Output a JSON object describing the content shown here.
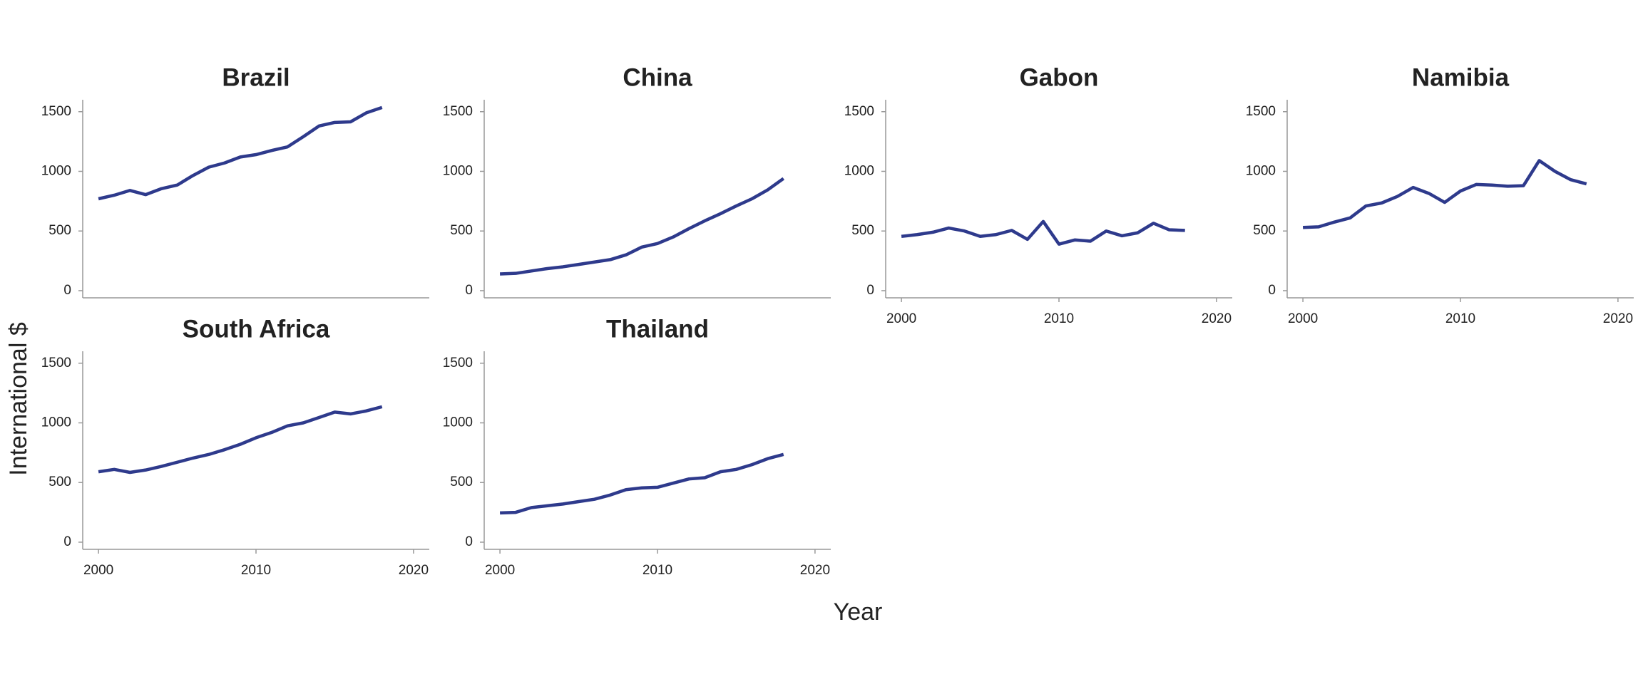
{
  "ylabel": "International $",
  "xlabel": "Year",
  "chart_data": [
    {
      "type": "line",
      "title": "Brazil",
      "color": "#2e3a8c",
      "x": [
        2000,
        2001,
        2002,
        2003,
        2004,
        2005,
        2006,
        2007,
        2008,
        2009,
        2010,
        2011,
        2012,
        2013,
        2014,
        2015,
        2016,
        2017,
        2018
      ],
      "values": [
        770,
        800,
        840,
        805,
        855,
        885,
        965,
        1035,
        1070,
        1120,
        1140,
        1175,
        1205,
        1290,
        1380,
        1410,
        1415,
        1490,
        1535
      ],
      "xlim": [
        1999,
        2021
      ],
      "ylim": [
        -60,
        1600
      ],
      "yticks": [
        0,
        500,
        1000,
        1500
      ]
    },
    {
      "type": "line",
      "title": "China",
      "color": "#2e3a8c",
      "x": [
        2000,
        2001,
        2002,
        2003,
        2004,
        2005,
        2006,
        2007,
        2008,
        2009,
        2010,
        2011,
        2012,
        2013,
        2014,
        2015,
        2016,
        2017,
        2018
      ],
      "values": [
        140,
        145,
        165,
        185,
        200,
        220,
        240,
        260,
        300,
        365,
        395,
        450,
        520,
        585,
        645,
        710,
        770,
        845,
        940
      ],
      "xlim": [
        1999,
        2021
      ],
      "ylim": [
        -60,
        1600
      ],
      "yticks": [
        0,
        500,
        1000,
        1500
      ]
    },
    {
      "type": "line",
      "title": "Gabon",
      "color": "#2e3a8c",
      "x": [
        2000,
        2001,
        2002,
        2003,
        2004,
        2005,
        2006,
        2007,
        2008,
        2009,
        2010,
        2011,
        2012,
        2013,
        2014,
        2015,
        2016,
        2017,
        2018
      ],
      "values": [
        455,
        470,
        490,
        525,
        500,
        455,
        470,
        505,
        430,
        580,
        390,
        425,
        415,
        500,
        460,
        485,
        565,
        510,
        505
      ],
      "xlim": [
        1999,
        2021
      ],
      "xticks": [
        2000,
        2010,
        2020
      ],
      "ylim": [
        -60,
        1600
      ],
      "yticks": [
        0,
        500,
        1000,
        1500
      ]
    },
    {
      "type": "line",
      "title": "Namibia",
      "color": "#2e3a8c",
      "x": [
        2000,
        2001,
        2002,
        2003,
        2004,
        2005,
        2006,
        2007,
        2008,
        2009,
        2010,
        2011,
        2012,
        2013,
        2014,
        2015,
        2016,
        2017,
        2018
      ],
      "values": [
        530,
        535,
        575,
        610,
        710,
        735,
        790,
        865,
        815,
        740,
        835,
        890,
        885,
        875,
        880,
        1090,
        1000,
        930,
        895
      ],
      "xlim": [
        1999,
        2021
      ],
      "xticks": [
        2000,
        2010,
        2020
      ],
      "ylim": [
        -60,
        1600
      ],
      "yticks": [
        0,
        500,
        1000,
        1500
      ]
    },
    {
      "type": "line",
      "title": "South Africa",
      "color": "#2e3a8c",
      "x": [
        2000,
        2001,
        2002,
        2003,
        2004,
        2005,
        2006,
        2007,
        2008,
        2009,
        2010,
        2011,
        2012,
        2013,
        2014,
        2015,
        2016,
        2017,
        2018
      ],
      "values": [
        590,
        610,
        585,
        605,
        635,
        670,
        705,
        735,
        775,
        820,
        875,
        920,
        975,
        1000,
        1045,
        1090,
        1075,
        1100,
        1135
      ],
      "xlim": [
        1999,
        2021
      ],
      "xticks": [
        2000,
        2010,
        2020
      ],
      "ylim": [
        -60,
        1600
      ],
      "yticks": [
        0,
        500,
        1000,
        1500
      ]
    },
    {
      "type": "line",
      "title": "Thailand",
      "color": "#2e3a8c",
      "x": [
        2000,
        2001,
        2002,
        2003,
        2004,
        2005,
        2006,
        2007,
        2008,
        2009,
        2010,
        2011,
        2012,
        2013,
        2014,
        2015,
        2016,
        2017,
        2018
      ],
      "values": [
        245,
        250,
        290,
        305,
        320,
        340,
        360,
        395,
        440,
        455,
        460,
        495,
        530,
        540,
        590,
        610,
        650,
        700,
        735
      ],
      "xlim": [
        1999,
        2021
      ],
      "xticks": [
        2000,
        2010,
        2020
      ],
      "ylim": [
        -60,
        1600
      ],
      "yticks": [
        0,
        500,
        1000,
        1500
      ]
    }
  ]
}
